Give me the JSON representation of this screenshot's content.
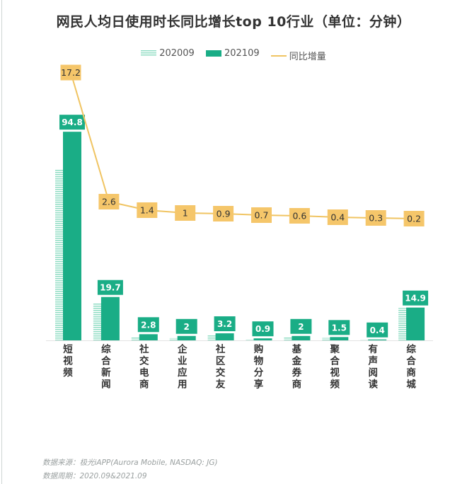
{
  "chart_data": {
    "type": "bar",
    "title": "网民人均日使用时长同比增长top 10行业（单位：分钟）",
    "categories": [
      "短视频",
      "综合新闻",
      "社交电商",
      "企业应用",
      "社区交友",
      "购物分享",
      "基金券商",
      "聚合视频",
      "有声阅读",
      "综合商城"
    ],
    "series": [
      {
        "name": "202009",
        "values": [
          77.6,
          17.1,
          1.4,
          1.0,
          2.3,
          0.2,
          1.4,
          1.1,
          0.1,
          14.7
        ]
      },
      {
        "name": "202109",
        "values": [
          94.8,
          19.7,
          2.8,
          2.0,
          3.2,
          0.9,
          2.0,
          1.5,
          0.4,
          14.9
        ]
      },
      {
        "name": "同比增量",
        "values": [
          17.2,
          2.6,
          1.4,
          1.0,
          0.9,
          0.7,
          0.6,
          0.4,
          0.3,
          0.2
        ]
      }
    ],
    "colors": {
      "s202009": "#8fdcc3",
      "s202109": "#1aad86",
      "growth": "#f0c462",
      "growth_box": "#f5c66a"
    },
    "legend_position": "top",
    "grid": false
  },
  "source": {
    "line1": "数据来源：极光iAPP(Aurora Mobile, NASDAQ: JG)",
    "line2": "数据周期：2020.09&2021.09"
  }
}
